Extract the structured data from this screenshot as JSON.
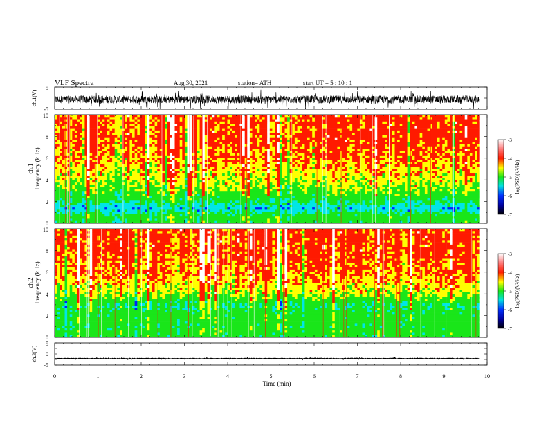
{
  "header": {
    "title": "VLF  Spectra",
    "date": "Aug.30, 2021",
    "station": "station= ATH",
    "start": "start  UT  =    5  : 10 : 1"
  },
  "axes": {
    "ch1_label": "ch.1(V)",
    "ch3_label": "ch.3(V)",
    "spec1_label_line1": "ch.1",
    "spec2_label_line1": "ch.2",
    "spec_label_line2": "Frequency  (kHz)",
    "xlabel": "Time  (min)",
    "colorbar_label": "log(PSD)(V²/Hz)"
  },
  "colors": {
    "wave": "#000000",
    "red": "#ff1a00",
    "yellow": "#ffff00",
    "green": "#19e619",
    "cyan": "#00e6e6",
    "blue": "#0020ff",
    "white": "#ffffff"
  },
  "chart_data": [
    {
      "type": "line",
      "name": "ch1-waveform",
      "ylabel": "ch.1(V)",
      "ylim": [
        -5,
        5
      ],
      "yticks": [
        "5",
        "-5"
      ],
      "xlim": [
        0,
        10
      ],
      "baseline_v": -0.6,
      "approx_amplitude_v": 2.5
    },
    {
      "type": "heatmap",
      "name": "ch1-spectrogram",
      "ylabel": "Frequency (kHz)",
      "ylim": [
        0,
        10
      ],
      "yticks": [
        "0",
        "2",
        "4",
        "6",
        "8",
        "10"
      ],
      "xlim": [
        0,
        10
      ],
      "data_end_min": 9.83,
      "colorbar": {
        "range": [
          -7,
          -3
        ],
        "ticks": [
          "-3",
          "-4",
          "-5",
          "-6",
          "-7"
        ],
        "label": "log(PSD)(V²/Hz)"
      },
      "level_profile_by_freq_khz": [
        [
          0,
          -5.2
        ],
        [
          0.5,
          -5.0
        ],
        [
          1,
          -5.4
        ],
        [
          1.3,
          -5.9
        ],
        [
          2,
          -5.3
        ],
        [
          3,
          -4.7
        ],
        [
          4,
          -4.4
        ],
        [
          5,
          -4.2
        ],
        [
          6,
          -4.0
        ],
        [
          8,
          -3.8
        ],
        [
          10,
          -3.8
        ]
      ]
    },
    {
      "type": "heatmap",
      "name": "ch2-spectrogram",
      "ylabel": "Frequency (kHz)",
      "ylim": [
        0,
        10
      ],
      "yticks": [
        "0",
        "2",
        "4",
        "6",
        "8",
        "10"
      ],
      "xlim": [
        0,
        10
      ],
      "data_end_min": 9.83,
      "colorbar": {
        "range": [
          -7,
          -3
        ],
        "ticks": [
          "-3",
          "-4",
          "-5",
          "-6",
          "-7"
        ],
        "label": "log(PSD)(V²/Hz)"
      },
      "level_profile_by_freq_khz": [
        [
          0,
          -5.2
        ],
        [
          0.5,
          -5.0
        ],
        [
          1,
          -5.2
        ],
        [
          1.5,
          -5.0
        ],
        [
          2,
          -5.1
        ],
        [
          3,
          -5.3
        ],
        [
          4,
          -4.5
        ],
        [
          5,
          -4.2
        ],
        [
          6,
          -4.0
        ],
        [
          8,
          -3.8
        ],
        [
          10,
          -3.8
        ]
      ]
    },
    {
      "type": "line",
      "name": "ch3-waveform",
      "ylabel": "ch.3(V)",
      "xlabel": "Time  (min)",
      "ylim": [
        -5,
        5
      ],
      "yticks": [
        "5",
        "0",
        "-5"
      ],
      "xlim": [
        0,
        10
      ],
      "xticks": [
        "0",
        "1",
        "2",
        "3",
        "4",
        "5",
        "6",
        "7",
        "8",
        "9",
        "10"
      ],
      "baseline_v": -2.1,
      "approx_amplitude_v": 0.15
    }
  ]
}
